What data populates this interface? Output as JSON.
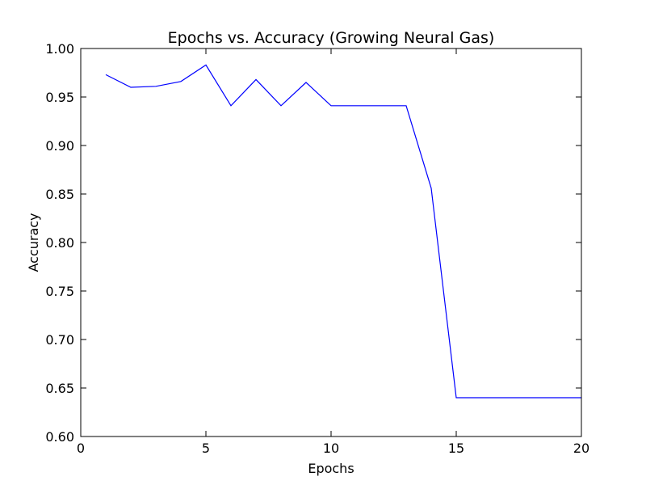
{
  "chart_data": {
    "type": "line",
    "title": "Epochs vs. Accuracy (Growing Neural Gas)",
    "xlabel": "Epochs",
    "ylabel": "Accuracy",
    "xlim": [
      0,
      20
    ],
    "ylim": [
      0.6,
      1.0
    ],
    "x_ticks": [
      0,
      5,
      10,
      15,
      20
    ],
    "x_tick_labels": [
      "0",
      "5",
      "10",
      "15",
      "20"
    ],
    "y_ticks": [
      0.6,
      0.65,
      0.7,
      0.75,
      0.8,
      0.85,
      0.9,
      0.95,
      1.0
    ],
    "y_tick_labels": [
      "0.60",
      "0.65",
      "0.70",
      "0.75",
      "0.80",
      "0.85",
      "0.90",
      "0.95",
      "1.00"
    ],
    "grid": false,
    "legend": "none",
    "series": [
      {
        "color": "#0000ff",
        "x": [
          1,
          2,
          3,
          4,
          5,
          6,
          7,
          8,
          9,
          10,
          11,
          12,
          13,
          14,
          15,
          16,
          17,
          18,
          19,
          20
        ],
        "y": [
          0.973,
          0.96,
          0.961,
          0.966,
          0.983,
          0.941,
          0.968,
          0.941,
          0.965,
          0.941,
          0.941,
          0.941,
          0.941,
          0.856,
          0.64,
          0.64,
          0.64,
          0.64,
          0.64,
          0.64
        ]
      }
    ]
  }
}
